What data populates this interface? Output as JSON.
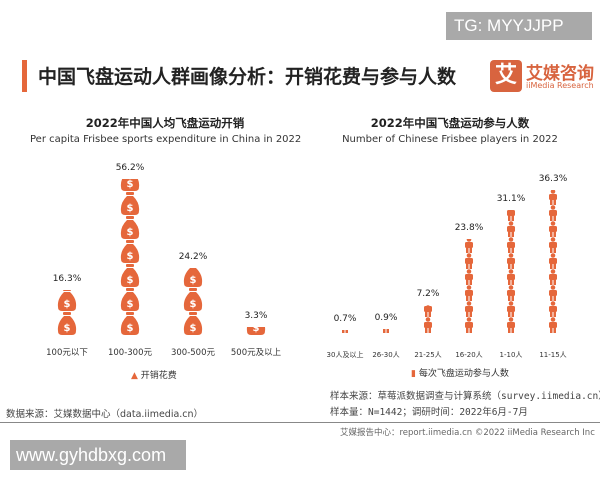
{
  "watermark_top": "TG: MYYJJPP",
  "watermark_bottom": "www.gyhdbxg.com",
  "header": {
    "title": "中国飞盘运动人群画像分析：开销花费与参与人数",
    "logo_cn": "艾媒咨询",
    "logo_en": "iiMedia Research",
    "logo_mark": "艾"
  },
  "colors": {
    "accent": "#e5673b"
  },
  "chart_data": [
    {
      "type": "bar",
      "icon": "money-bag-icon",
      "title": "2022年中国人均飞盘运动开销",
      "subtitle": "Per capita Frisbee sports expenditure in China in 2022",
      "categories": [
        "100元以下",
        "100-300元",
        "300-500元",
        "500元及以上"
      ],
      "values": [
        16.3,
        56.2,
        24.2,
        3.3
      ],
      "labels": [
        "16.3%",
        "56.2%",
        "24.2%",
        "3.3%"
      ],
      "legend": "开销花费",
      "legend_placement": "bottom",
      "unit": "%"
    },
    {
      "type": "bar",
      "icon": "person-icon",
      "title": "2022年中国飞盘运动参与人数",
      "subtitle": "Number of Chinese Frisbee players in 2022",
      "categories": [
        "30人及以上",
        "26-30人",
        "21-25人",
        "16-20人",
        "1-10人",
        "11-15人"
      ],
      "values": [
        0.7,
        0.9,
        7.2,
        23.8,
        31.1,
        36.3
      ],
      "labels": [
        "0.7%",
        "0.9%",
        "7.2%",
        "23.8%",
        "31.1%",
        "36.3%"
      ],
      "legend": "每次飞盘运动参与人数",
      "legend_placement": "bottom",
      "unit": "%"
    }
  ],
  "notes": {
    "source_right": "样本来源：草莓派数据调查与计算系统（survey.iimedia.cn）",
    "sample": "样本量：N=1442；调研时间：2022年6月-7月",
    "source_left": "数据来源：艾媒数据中心（data.iimedia.cn）",
    "footer": "艾媒报告中心：report.iimedia.cn  ©2022  iiMedia Research  Inc"
  }
}
